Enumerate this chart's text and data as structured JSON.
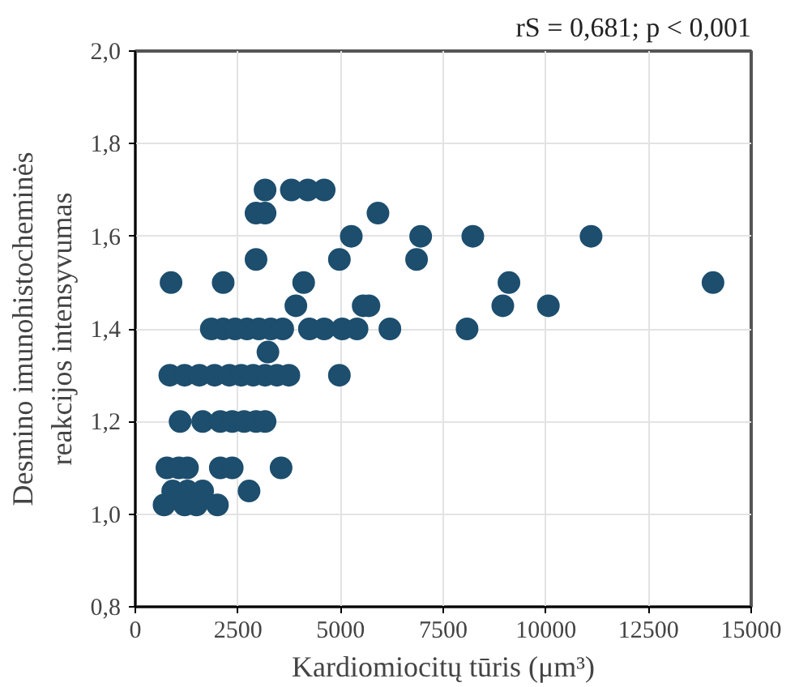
{
  "chart_data": {
    "type": "scatter",
    "annotations": [
      "rS = 0,681; p < 0,001"
    ],
    "xlabel": "Kardiomiocitų tūris (μm³)",
    "ylabel": "Desmino imunohistocheminės\nreakcijos intensyvumas",
    "marker": "circle",
    "grid": true,
    "xlim": [
      0,
      15000
    ],
    "xticks": [
      0,
      2500,
      5000,
      7500,
      10000,
      12500,
      15000
    ],
    "ylim": [
      0.8,
      2.0
    ],
    "yticks": [
      {
        "value": 0.8,
        "label": "0,8"
      },
      {
        "value": 1.0,
        "label": "1,0"
      },
      {
        "value": 1.2,
        "label": "1,2"
      },
      {
        "value": 1.4,
        "label": "1,4"
      },
      {
        "value": 1.6,
        "label": "1,6"
      },
      {
        "value": 1.8,
        "label": "1,8"
      },
      {
        "value": 2.0,
        "label": "2,0"
      }
    ],
    "series": [
      {
        "color": "#1d4e6e",
        "x": [
          3160,
          3800,
          4200,
          4600,
          2940,
          3160,
          5910,
          5260,
          6950,
          8220,
          11100,
          2940,
          4970,
          6850,
          870,
          2140,
          4100,
          9100,
          14070,
          3910,
          5550,
          5690,
          8950,
          10060,
          1850,
          2140,
          2430,
          2720,
          3010,
          3300,
          3590,
          4240,
          4600,
          5040,
          5400,
          6200,
          8080,
          3230,
          840,
          1200,
          1560,
          1930,
          2290,
          2580,
          2870,
          3160,
          3450,
          3740,
          4970,
          1090,
          1640,
          2070,
          2360,
          2650,
          2940,
          3160,
          770,
          1060,
          1270,
          2070,
          2360,
          3550,
          910,
          1270,
          1640,
          2770,
          700,
          1200,
          1490,
          2000
        ],
        "values": [
          1.7,
          1.7,
          1.7,
          1.7,
          1.65,
          1.65,
          1.65,
          1.6,
          1.6,
          1.6,
          1.6,
          1.55,
          1.55,
          1.55,
          1.5,
          1.5,
          1.5,
          1.5,
          1.5,
          1.45,
          1.45,
          1.45,
          1.45,
          1.45,
          1.4,
          1.4,
          1.4,
          1.4,
          1.4,
          1.4,
          1.4,
          1.4,
          1.4,
          1.4,
          1.4,
          1.4,
          1.4,
          1.35,
          1.3,
          1.3,
          1.3,
          1.3,
          1.3,
          1.3,
          1.3,
          1.3,
          1.3,
          1.3,
          1.3,
          1.2,
          1.2,
          1.2,
          1.2,
          1.2,
          1.2,
          1.2,
          1.1,
          1.1,
          1.1,
          1.1,
          1.1,
          1.1,
          1.05,
          1.05,
          1.05,
          1.05,
          1.02,
          1.02,
          1.02,
          1.02
        ]
      }
    ]
  }
}
